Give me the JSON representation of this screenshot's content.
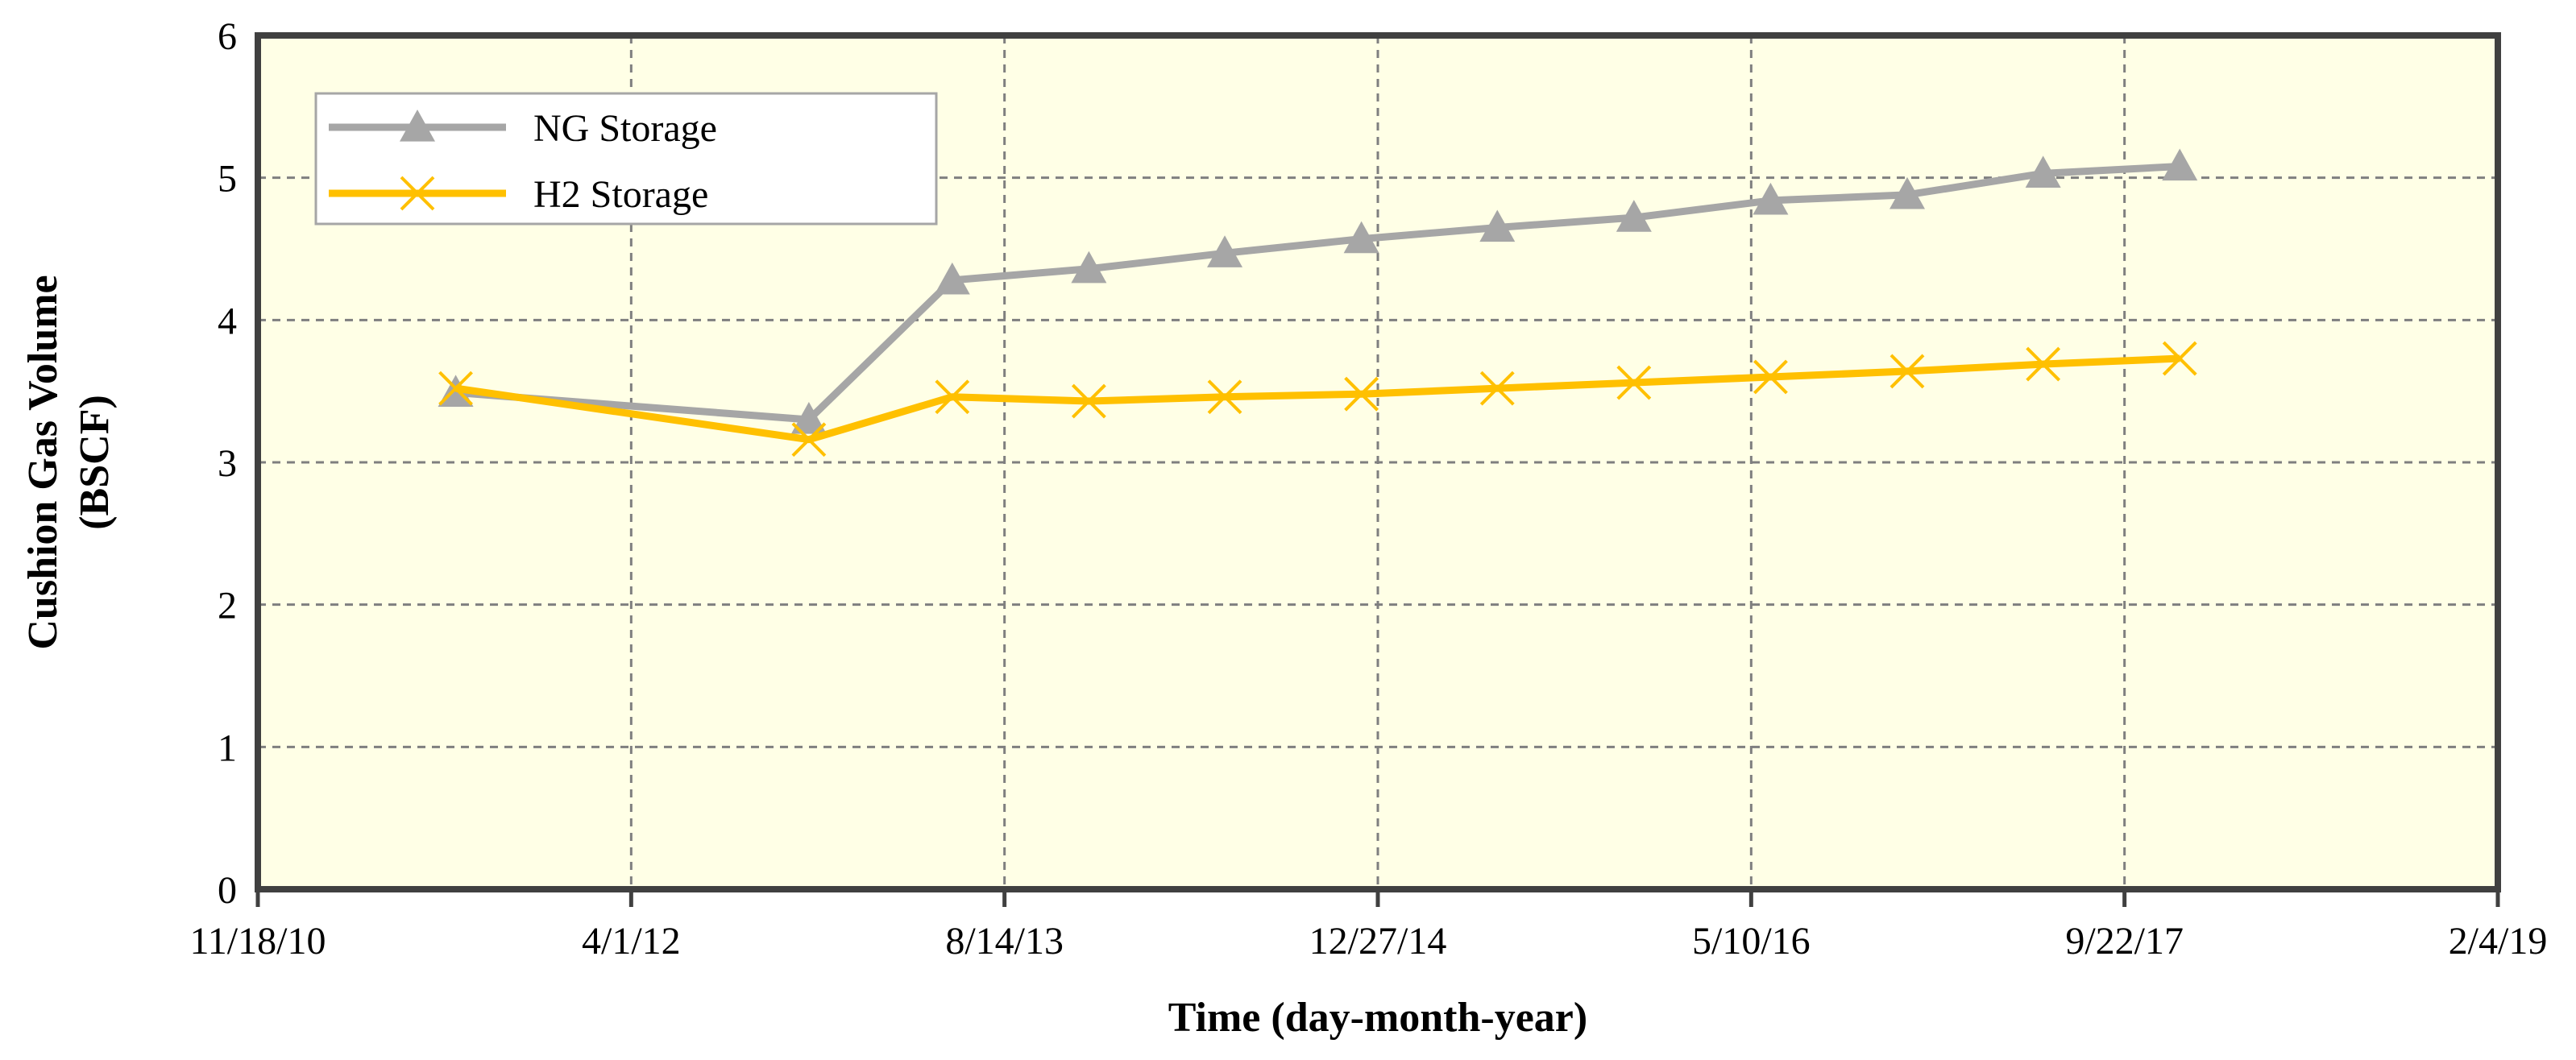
{
  "chart_data": {
    "type": "line",
    "xlabel": "Time (day-month-year)",
    "ylabel_line1": "Cushion Gas Volume",
    "ylabel_line2": "(BSCF)",
    "x_axis_type": "date",
    "xlim": [
      "2010-11-18",
      "2019-02-04"
    ],
    "ylim": [
      0,
      6
    ],
    "x_ticks": [
      {
        "date": "2010-11-18",
        "label": "11/18/10"
      },
      {
        "date": "2012-04-01",
        "label": "4/1/12"
      },
      {
        "date": "2013-08-14",
        "label": "8/14/13"
      },
      {
        "date": "2014-12-27",
        "label": "12/27/14"
      },
      {
        "date": "2016-05-10",
        "label": "5/10/16"
      },
      {
        "date": "2017-09-22",
        "label": "9/22/17"
      },
      {
        "date": "2019-02-04",
        "label": "2/4/19"
      }
    ],
    "y_ticks": [
      0,
      1,
      2,
      3,
      4,
      5,
      6
    ],
    "grid": true,
    "plot_background": "#ffffe6",
    "legend_position": "top-left",
    "series": [
      {
        "name": "NG Storage",
        "color": "#a6a6a6",
        "marker": "triangle",
        "points": [
          {
            "x": "2011-08-10",
            "y": 3.49
          },
          {
            "x": "2012-11-25",
            "y": 3.3
          },
          {
            "x": "2013-06-05",
            "y": 4.28
          },
          {
            "x": "2013-12-05",
            "y": 4.36
          },
          {
            "x": "2014-06-05",
            "y": 4.47
          },
          {
            "x": "2014-12-05",
            "y": 4.57
          },
          {
            "x": "2015-06-05",
            "y": 4.65
          },
          {
            "x": "2015-12-05",
            "y": 4.72
          },
          {
            "x": "2016-06-05",
            "y": 4.84
          },
          {
            "x": "2016-12-05",
            "y": 4.88
          },
          {
            "x": "2017-06-05",
            "y": 5.03
          },
          {
            "x": "2017-12-05",
            "y": 5.08
          }
        ]
      },
      {
        "name": "H2 Storage",
        "color": "#ffc000",
        "marker": "x",
        "points": [
          {
            "x": "2011-08-10",
            "y": 3.52
          },
          {
            "x": "2012-11-25",
            "y": 3.16
          },
          {
            "x": "2013-06-05",
            "y": 3.46
          },
          {
            "x": "2013-12-05",
            "y": 3.43
          },
          {
            "x": "2014-06-05",
            "y": 3.46
          },
          {
            "x": "2014-12-05",
            "y": 3.48
          },
          {
            "x": "2015-06-05",
            "y": 3.52
          },
          {
            "x": "2015-12-05",
            "y": 3.56
          },
          {
            "x": "2016-06-05",
            "y": 3.6
          },
          {
            "x": "2016-12-05",
            "y": 3.64
          },
          {
            "x": "2017-06-05",
            "y": 3.69
          },
          {
            "x": "2017-12-05",
            "y": 3.73
          }
        ]
      }
    ]
  }
}
